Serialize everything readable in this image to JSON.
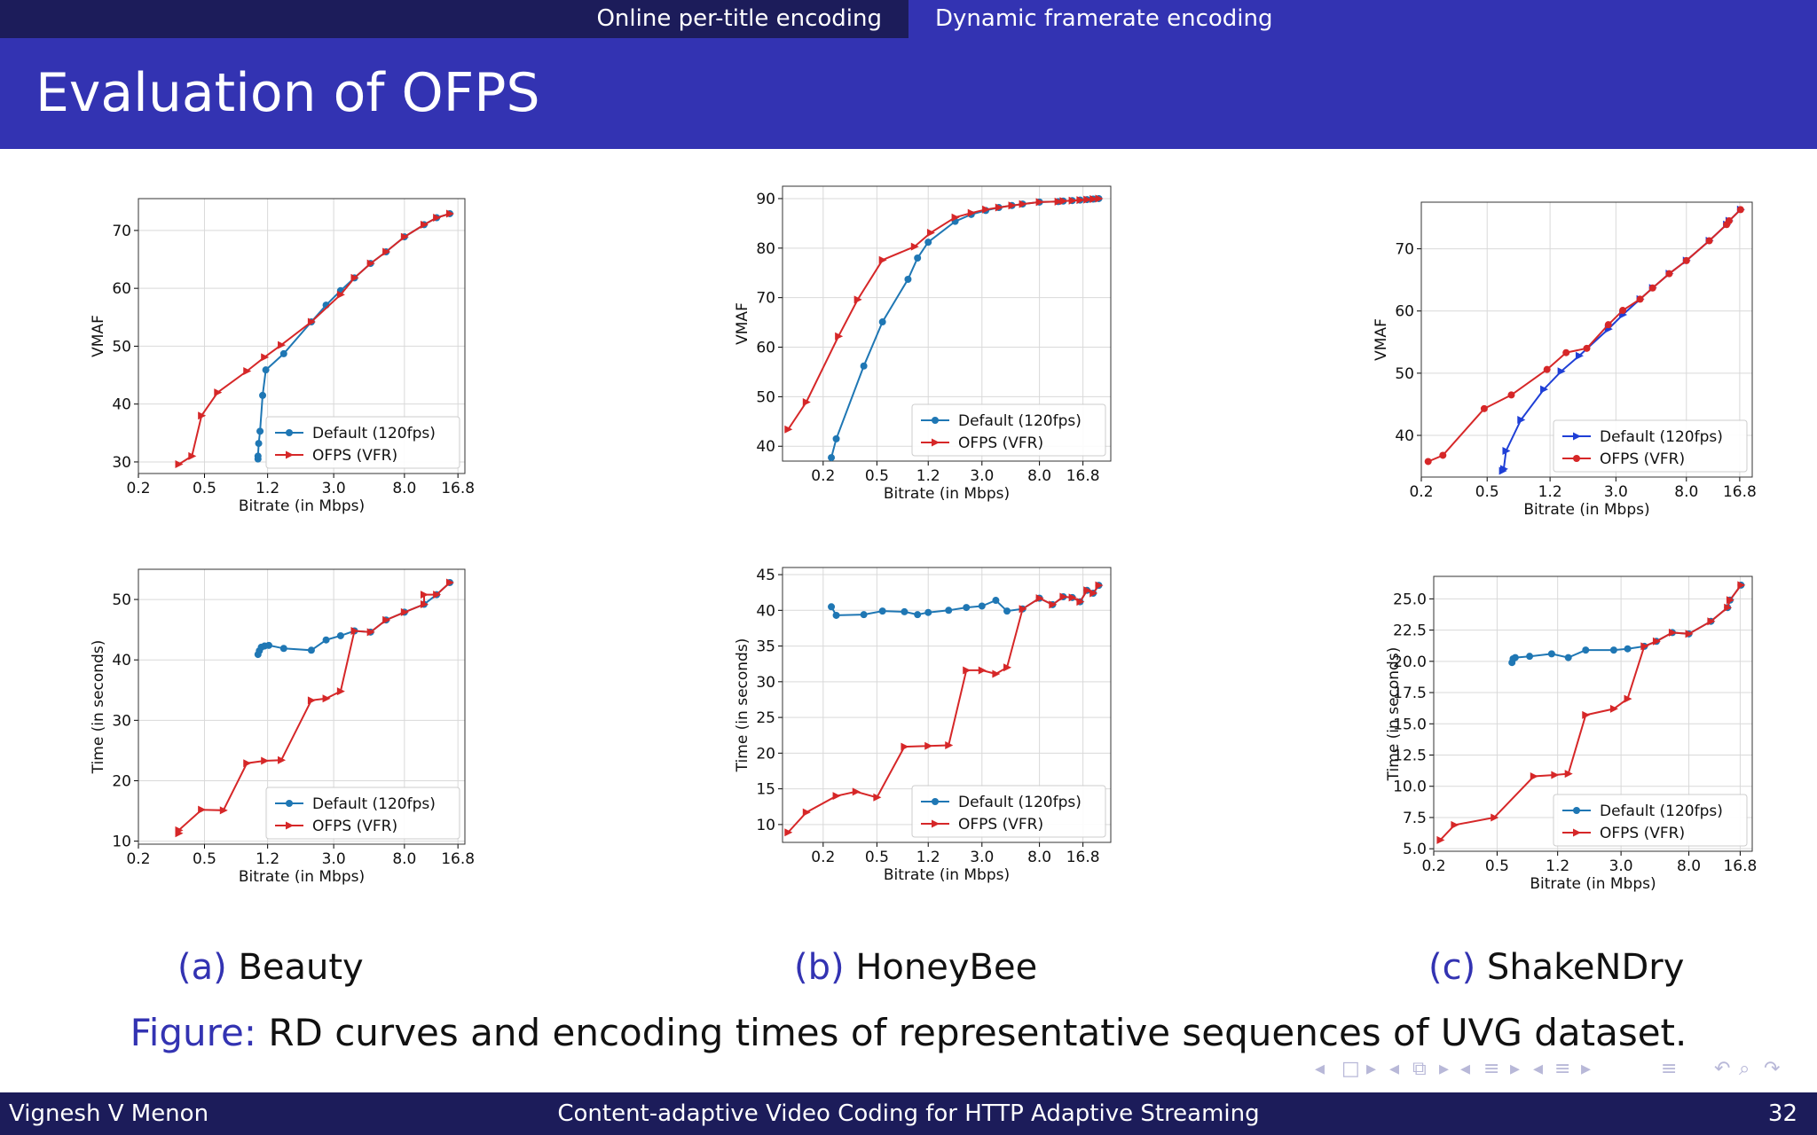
{
  "nav": {
    "left": "Online per-title encoding",
    "right": "Dynamic framerate encoding"
  },
  "frame_title": "Evaluation of OFPS",
  "captions": [
    {
      "label": "(a)",
      "text": "Beauty"
    },
    {
      "label": "(b)",
      "text": "HoneyBee"
    },
    {
      "label": "(c)",
      "text": "ShakeNDry"
    }
  ],
  "figure_caption": {
    "label": "Figure:",
    "text": "RD curves and encoding times of representative sequences of UVG dataset."
  },
  "footer": {
    "author": "Vignesh V Menon",
    "title": "Content-adaptive Video Coding for HTTP Adaptive Streaming",
    "page": "32"
  },
  "nav_symbols": [
    "◂",
    "□",
    "▸",
    "◂",
    "⧉",
    "▸",
    "◂",
    "≡",
    "▸",
    "◂",
    "≡",
    "▸",
    "≡",
    "↶",
    "⌕",
    "↷"
  ],
  "colors": {
    "default_series": "#1f77b4",
    "ofps_series": "#d62728",
    "shake_default_series": "#1f3fd6",
    "theme": "#3333b2",
    "theme_dark": "#1c1c5a"
  },
  "chart_data": [
    {
      "id": "beauty-vmaf",
      "type": "line",
      "xlabel": "Bitrate (in Mbps)",
      "ylabel": "VMAF",
      "x_scale": "log",
      "xticks": [
        0.2,
        0.5,
        1.2,
        3.0,
        8.0,
        16.8
      ],
      "xtick_labels": [
        "0.2",
        "0.5",
        "1.2",
        "3.0",
        "8.0",
        "16.8"
      ],
      "xlim": [
        0.2,
        18.5
      ],
      "yticks": [
        30,
        40,
        50,
        60,
        70
      ],
      "ylim": [
        28,
        75.5
      ],
      "grid": true,
      "legend_position": "lower-right",
      "series": [
        {
          "name": "Default (120fps)",
          "marker": "circle",
          "x": [
            1.05,
            1.05,
            1.06,
            1.08,
            1.12,
            1.17,
            1.5,
            2.2,
            2.7,
            3.3,
            4.0,
            5.0,
            6.2,
            8.0,
            10.5,
            12.5,
            15.0
          ],
          "y": [
            30.5,
            31.0,
            33.2,
            35.3,
            41.5,
            45.9,
            48.7,
            54.2,
            57.1,
            59.6,
            61.8,
            64.3,
            66.3,
            68.9,
            71.0,
            72.2,
            72.9
          ]
        },
        {
          "name": "OFPS (VFR)",
          "marker": "triangle-right",
          "x": [
            0.35,
            0.42,
            0.48,
            0.6,
            0.9,
            1.15,
            1.45,
            2.2,
            3.3,
            4.0,
            5.0,
            6.2,
            8.0,
            10.5,
            12.5,
            15.0
          ],
          "y": [
            29.6,
            31.0,
            38.0,
            42.0,
            45.7,
            48.1,
            50.2,
            54.2,
            58.9,
            61.8,
            64.3,
            66.3,
            68.9,
            71.0,
            72.2,
            72.9
          ]
        }
      ]
    },
    {
      "id": "beauty-time",
      "type": "line",
      "xlabel": "Bitrate (in Mbps)",
      "ylabel": "Time (in seconds)",
      "x_scale": "log",
      "xticks": [
        0.2,
        0.5,
        1.2,
        3.0,
        8.0,
        16.8
      ],
      "xtick_labels": [
        "0.2",
        "0.5",
        "1.2",
        "3.0",
        "8.0",
        "16.8"
      ],
      "xlim": [
        0.2,
        18.5
      ],
      "yticks": [
        10,
        20,
        30,
        40,
        50
      ],
      "ylim": [
        9.5,
        55
      ],
      "grid": true,
      "legend_position": "lower-right",
      "series": [
        {
          "name": "Default (120fps)",
          "marker": "circle",
          "x": [
            1.05,
            1.07,
            1.1,
            1.15,
            1.22,
            1.5,
            2.2,
            2.7,
            3.3,
            4.0,
            5.0,
            6.2,
            8.0,
            10.5,
            12.5,
            15.0
          ],
          "y": [
            40.9,
            41.5,
            42.1,
            42.3,
            42.4,
            41.9,
            41.6,
            43.3,
            44.0,
            44.8,
            44.6,
            46.6,
            47.9,
            49.2,
            50.8,
            52.8
          ]
        },
        {
          "name": "OFPS (VFR)",
          "marker": "triangle-right",
          "x": [
            0.35,
            0.35,
            0.48,
            0.65,
            0.9,
            1.15,
            1.45,
            2.2,
            2.7,
            3.3,
            4.0,
            5.0,
            6.2,
            8.0,
            10.5,
            10.5,
            12.5,
            15.0
          ],
          "y": [
            11.3,
            11.8,
            15.2,
            15.1,
            22.9,
            23.3,
            23.4,
            33.3,
            33.6,
            34.8,
            44.8,
            44.6,
            46.6,
            47.9,
            49.2,
            50.8,
            50.8,
            52.8
          ]
        }
      ]
    },
    {
      "id": "honeybee-vmaf",
      "type": "line",
      "xlabel": "Bitrate (in Mbps)",
      "ylabel": "VMAF",
      "x_scale": "log",
      "xticks": [
        0.2,
        0.5,
        1.2,
        3.0,
        8.0,
        16.8
      ],
      "xtick_labels": [
        "0.2",
        "0.5",
        "1.2",
        "3.0",
        "8.0",
        "16.8"
      ],
      "xlim": [
        0.1,
        27
      ],
      "yticks": [
        40,
        50,
        60,
        70,
        80,
        90
      ],
      "ylim": [
        37,
        92.5
      ],
      "grid": true,
      "legend_position": "lower-right",
      "series": [
        {
          "name": "Default (120fps)",
          "marker": "circle",
          "x": [
            0.23,
            0.25,
            0.4,
            0.55,
            0.85,
            1.0,
            1.2,
            1.9,
            2.5,
            3.2,
            4.0,
            5.0,
            6.0,
            8.0,
            11,
            12,
            14,
            16,
            18,
            20,
            22
          ],
          "y": [
            37.7,
            41.5,
            56.2,
            65.1,
            73.7,
            78.0,
            81.2,
            85.4,
            86.8,
            87.6,
            88.2,
            88.6,
            88.9,
            89.3,
            89.4,
            89.5,
            89.6,
            89.7,
            89.8,
            89.9,
            90.0
          ]
        },
        {
          "name": "OFPS (VFR)",
          "marker": "triangle-right",
          "x": [
            0.11,
            0.15,
            0.26,
            0.36,
            0.55,
            0.95,
            1.25,
            1.9,
            2.5,
            3.2,
            4.0,
            5.0,
            6.0,
            8.0,
            11,
            12,
            14,
            16,
            18,
            20,
            22
          ],
          "y": [
            43.4,
            48.9,
            62.2,
            69.6,
            77.6,
            80.3,
            83.1,
            86.2,
            87.1,
            87.8,
            88.2,
            88.6,
            88.9,
            89.3,
            89.4,
            89.5,
            89.6,
            89.7,
            89.8,
            89.9,
            90.0
          ]
        }
      ]
    },
    {
      "id": "honeybee-time",
      "type": "line",
      "xlabel": "Bitrate (in Mbps)",
      "ylabel": "Time (in seconds)",
      "x_scale": "log",
      "xticks": [
        0.2,
        0.5,
        1.2,
        3.0,
        8.0,
        16.8
      ],
      "xtick_labels": [
        "0.2",
        "0.5",
        "1.2",
        "3.0",
        "8.0",
        "16.8"
      ],
      "xlim": [
        0.1,
        27
      ],
      "yticks": [
        10,
        15,
        20,
        25,
        30,
        35,
        40,
        45
      ],
      "ylim": [
        7.5,
        46
      ],
      "grid": true,
      "legend_position": "lower-right",
      "series": [
        {
          "name": "Default (120fps)",
          "marker": "circle",
          "x": [
            0.23,
            0.25,
            0.4,
            0.55,
            0.8,
            1.0,
            1.2,
            1.7,
            2.3,
            3.0,
            3.8,
            4.6,
            6.0,
            8.0,
            10,
            12,
            14,
            16,
            18,
            20,
            22
          ],
          "y": [
            40.5,
            39.3,
            39.4,
            39.9,
            39.8,
            39.4,
            39.7,
            40.0,
            40.4,
            40.6,
            41.4,
            39.9,
            40.2,
            41.7,
            40.8,
            41.9,
            41.8,
            41.2,
            42.8,
            42.4,
            43.5
          ]
        },
        {
          "name": "OFPS (VFR)",
          "marker": "triangle-right",
          "x": [
            0.11,
            0.15,
            0.25,
            0.35,
            0.5,
            0.8,
            1.2,
            1.7,
            2.3,
            3.0,
            3.8,
            4.6,
            6.0,
            8.0,
            10,
            12,
            14,
            16,
            18,
            20,
            22
          ],
          "y": [
            8.9,
            11.7,
            14.0,
            14.6,
            13.8,
            20.9,
            21.0,
            21.1,
            31.6,
            31.6,
            31.1,
            32.0,
            40.2,
            41.7,
            40.8,
            41.9,
            41.8,
            41.2,
            42.8,
            42.4,
            43.5
          ]
        }
      ]
    },
    {
      "id": "shakendry-vmaf",
      "type": "line",
      "xlabel": "Bitrate (in Mbps)",
      "ylabel": "VMAF",
      "x_scale": "log",
      "xticks": [
        0.2,
        0.5,
        1.2,
        3.0,
        8.0,
        16.8
      ],
      "xtick_labels": [
        "0.2",
        "0.5",
        "1.2",
        "3.0",
        "8.0",
        "16.8"
      ],
      "xlim": [
        0.2,
        20
      ],
      "yticks": [
        40,
        50,
        60,
        70
      ],
      "ylim": [
        33.3,
        77.5
      ],
      "grid": true,
      "legend_position": "lower-right",
      "series": [
        {
          "name": "Default (120fps)",
          "marker": "triangle-right",
          "x": [
            0.62,
            0.63,
            0.65,
            0.8,
            1.1,
            1.4,
            1.8,
            2.7,
            3.3,
            4.2,
            5.0,
            6.3,
            8.0,
            11.0,
            14.0,
            14.5,
            17.0
          ],
          "y": [
            34.3,
            34.6,
            37.5,
            42.5,
            47.4,
            50.3,
            52.8,
            57.1,
            59.4,
            61.9,
            63.7,
            66.0,
            68.1,
            71.3,
            73.9,
            74.5,
            76.3
          ]
        },
        {
          "name": "OFPS (VFR)",
          "marker": "circle",
          "x": [
            0.22,
            0.27,
            0.48,
            0.7,
            1.15,
            1.5,
            2.0,
            2.7,
            3.3,
            4.2,
            5.0,
            6.3,
            8.0,
            11.0,
            14.0,
            14.5,
            17.0
          ],
          "y": [
            35.8,
            36.8,
            44.3,
            46.5,
            50.6,
            53.3,
            54.0,
            57.8,
            60.1,
            61.9,
            63.7,
            66.0,
            68.1,
            71.3,
            73.9,
            74.5,
            76.3
          ]
        }
      ]
    },
    {
      "id": "shakendry-time",
      "type": "line",
      "xlabel": "Bitrate (in Mbps)",
      "ylabel": "Time (in seconds)",
      "x_scale": "log",
      "xticks": [
        0.2,
        0.5,
        1.2,
        3.0,
        8.0,
        16.8
      ],
      "xtick_labels": [
        "0.2",
        "0.5",
        "1.2",
        "3.0",
        "8.0",
        "16.8"
      ],
      "xlim": [
        0.2,
        20
      ],
      "yticks": [
        5.0,
        7.5,
        10.0,
        12.5,
        15.0,
        17.5,
        20.0,
        22.5,
        25.0
      ],
      "ylim": [
        4.8,
        26.8
      ],
      "yprecision": 1,
      "grid": true,
      "legend_position": "lower-right",
      "series": [
        {
          "name": "Default (120fps)",
          "marker": "circle",
          "x": [
            0.62,
            0.63,
            0.65,
            0.8,
            1.1,
            1.4,
            1.8,
            2.7,
            3.3,
            4.2,
            5.0,
            6.3,
            8.0,
            11.0,
            14.0,
            14.5,
            17.0
          ],
          "y": [
            19.9,
            20.2,
            20.3,
            20.4,
            20.6,
            20.3,
            20.9,
            20.9,
            21.0,
            21.2,
            21.6,
            22.3,
            22.2,
            23.2,
            24.3,
            24.9,
            26.1
          ]
        },
        {
          "name": "OFPS (VFR)",
          "marker": "triangle-right",
          "x": [
            0.22,
            0.27,
            0.48,
            0.85,
            1.15,
            1.4,
            1.8,
            2.7,
            3.3,
            4.2,
            5.0,
            6.3,
            8.0,
            11.0,
            14.0,
            14.5,
            17.0
          ],
          "y": [
            5.7,
            6.9,
            7.5,
            10.8,
            10.9,
            11.0,
            15.7,
            16.2,
            17.0,
            21.2,
            21.6,
            22.3,
            22.2,
            23.2,
            24.3,
            24.9,
            26.1
          ]
        }
      ]
    }
  ]
}
